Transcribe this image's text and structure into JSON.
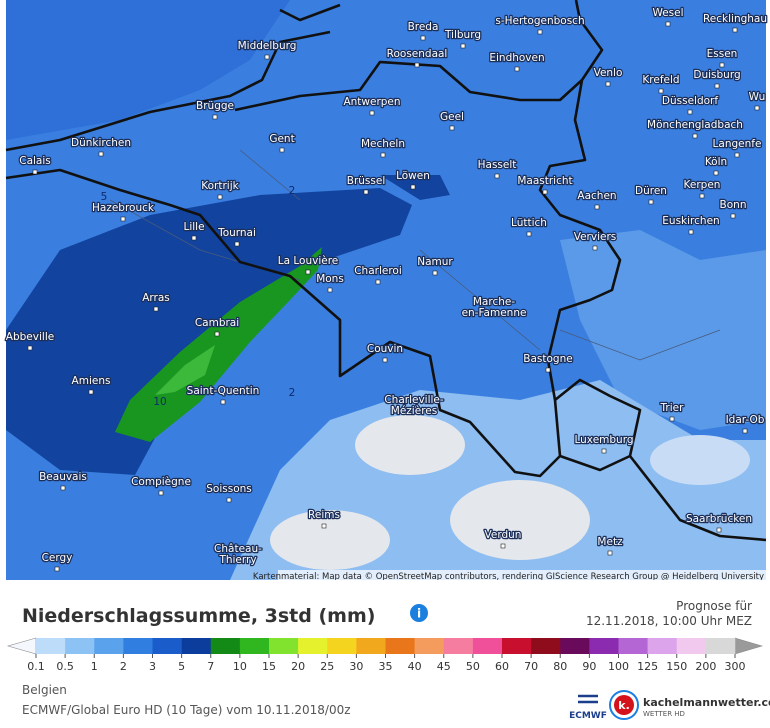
{
  "map": {
    "cities": [
      "Breda",
      "Tilburg",
      "s-Hertogenbosch",
      "Wesel",
      "Recklinghau",
      "Middelburg",
      "Roosendaal",
      "Eindhoven",
      "Essen",
      "Venlo",
      "Krefeld",
      "Duisburg",
      "Brügge",
      "Antwerpen",
      "Düsseldorf",
      "Wu",
      "Geel",
      "Mönchengladbach",
      "Gent",
      "Mecheln",
      "Dünkirchen",
      "Langenfe",
      "Calais",
      "Hasselt",
      "Köln",
      "Brüssel",
      "Löwen",
      "Maastricht",
      "Kortrijk",
      "Düren",
      "Kerpen",
      "Hazebrouck",
      "Aachen",
      "Bonn",
      "Lille",
      "Tournai",
      "Lüttich",
      "Verviers",
      "Euskirchen",
      "La Louvière",
      "Charleroi",
      "Namur",
      "Mons",
      "Arras",
      [
        "Marche-",
        "en-Famenne"
      ],
      "Cambrai",
      "Abbeville",
      "Couvin",
      "Bastogne",
      "Amiens",
      "Saint-Quentin",
      [
        "Charleville-",
        "Mézières"
      ],
      "Trier",
      "Idar-Ob",
      "Luxemburg",
      "Beauvais",
      "Compiègne",
      "Soissons",
      "Reims",
      "Saarbrücken",
      "Verdun",
      "Cergy",
      [
        "Château-",
        "Thierry"
      ],
      "Metz"
    ],
    "contour_labels": [
      "5",
      "2",
      "10",
      "2"
    ],
    "attribution": "Kartenmaterial: Map data © OpenStreetMap contributors, rendering GIScience Research Group @ Heidelberg University"
  },
  "legend": {
    "title": "Niederschlagssumme, 3std (mm)",
    "values": [
      "0.1",
      "0.5",
      "1",
      "2",
      "3",
      "5",
      "7",
      "10",
      "15",
      "20",
      "25",
      "30",
      "35",
      "40",
      "45",
      "50",
      "60",
      "70",
      "80",
      "90",
      "100",
      "125",
      "150",
      "200",
      "300"
    ],
    "colors": [
      "#bcdcfa",
      "#8cc2f4",
      "#5aa3ec",
      "#2f7ee0",
      "#1a5dca",
      "#0d3d9c",
      "#138a16",
      "#30b61e",
      "#82e32e",
      "#e4f12c",
      "#f4d41f",
      "#f2a81c",
      "#e9761b",
      "#f49c5e",
      "#f57ea0",
      "#f0509a",
      "#c8102e",
      "#8e0c1c",
      "#6a0a5a",
      "#8a2bb0",
      "#b366d4",
      "#dca4ea",
      "#f2c9ee",
      "#d8d8d8"
    ]
  },
  "forecast": {
    "label": "Prognose für",
    "datetime": "12.11.2018, 10:00 Uhr MEZ"
  },
  "footer": {
    "region": "Belgien",
    "model": "ECMWF/Global Euro HD (10 Tage) vom 10.11.2018/00z",
    "ecmwf": "ECMWF",
    "logo_letter": "k.",
    "site": "kachelmannwetter.com",
    "site_sub": "WETTER HD"
  }
}
